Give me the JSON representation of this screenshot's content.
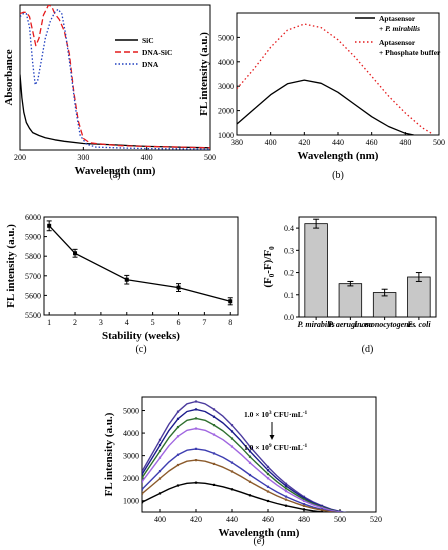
{
  "chart_data": [
    {
      "id": "a",
      "type": "line",
      "caption": "(a)",
      "xlabel": "Wavelength (nm)",
      "ylabel": "Absorbance",
      "xlim": [
        200,
        500
      ],
      "ylim": [
        0,
        1
      ],
      "xticks": [
        200,
        300,
        400,
        500
      ],
      "yticks": [],
      "legend": "top-right",
      "series": [
        {
          "name": "SiC",
          "color": "#000000",
          "dash": "",
          "x": [
            200,
            203,
            206,
            210,
            215,
            220,
            230,
            240,
            255,
            270,
            300,
            350,
            400,
            450,
            500
          ],
          "y": [
            0.52,
            0.36,
            0.26,
            0.19,
            0.15,
            0.12,
            0.1,
            0.085,
            0.07,
            0.06,
            0.045,
            0.035,
            0.025,
            0.02,
            0.015
          ]
        },
        {
          "name": "DNA-SiC",
          "color": "#e41a1c",
          "dash": "6,3",
          "x": [
            200,
            205,
            210,
            215,
            220,
            225,
            230,
            237,
            245,
            250,
            255,
            262,
            270,
            278,
            285,
            292,
            300,
            310,
            330,
            360,
            400,
            450,
            500
          ],
          "y": [
            0.94,
            0.95,
            0.95,
            0.92,
            0.82,
            0.72,
            0.77,
            0.93,
            1.0,
            0.99,
            0.94,
            0.9,
            0.82,
            0.66,
            0.4,
            0.2,
            0.08,
            0.05,
            0.04,
            0.03,
            0.025,
            0.02,
            0.015
          ]
        },
        {
          "name": "DNA",
          "color": "#1f3fbf",
          "dash": "1.5,2",
          "x": [
            200,
            205,
            210,
            215,
            220,
            224,
            228,
            233,
            240,
            248,
            255,
            260,
            266,
            272,
            280,
            288,
            295,
            305,
            320,
            350,
            400,
            450,
            500
          ],
          "y": [
            0.92,
            0.94,
            0.94,
            0.85,
            0.6,
            0.45,
            0.48,
            0.6,
            0.77,
            0.89,
            0.95,
            0.97,
            0.94,
            0.8,
            0.55,
            0.28,
            0.1,
            0.04,
            0.02,
            0.015,
            0.01,
            0.008,
            0.005
          ]
        }
      ]
    },
    {
      "id": "b",
      "type": "line",
      "caption": "(b)",
      "xlabel": "Wavelength (nm)",
      "ylabel": "FL intensity (a.u.)",
      "xlim": [
        380,
        500
      ],
      "ylim": [
        1000,
        6000
      ],
      "xticks": [
        380,
        400,
        420,
        440,
        460,
        480,
        500
      ],
      "yticks": [
        1000,
        2000,
        3000,
        4000,
        5000
      ],
      "legend": "top-right",
      "legend_entries": [
        {
          "line1": "Aptasensor",
          "line2_prefix": "+ ",
          "line2_italic": "P. mirabilis",
          "color": "#000000",
          "dash": ""
        },
        {
          "line1": "Aptasensor",
          "line2_prefix": "+ ",
          "line2_italic": "",
          "line2_rest": "Phosphate buffer",
          "color": "#e41a1c",
          "dash": "1.5,2.5"
        }
      ],
      "series": [
        {
          "name": "Aptasensor + P. mirabilis",
          "color": "#000000",
          "dash": "",
          "x": [
            380,
            390,
            400,
            410,
            420,
            430,
            440,
            450,
            460,
            470,
            480,
            485
          ],
          "y": [
            1450,
            2050,
            2650,
            3100,
            3250,
            3120,
            2750,
            2250,
            1750,
            1350,
            1070,
            1000
          ]
        },
        {
          "name": "Aptasensor + Phosphate buffer",
          "color": "#e41a1c",
          "dash": "1.5,2.5",
          "x": [
            380,
            390,
            400,
            410,
            420,
            430,
            440,
            450,
            460,
            470,
            480,
            490,
            496
          ],
          "y": [
            2900,
            3700,
            4600,
            5300,
            5550,
            5400,
            4900,
            4200,
            3400,
            2600,
            1900,
            1300,
            1050
          ]
        }
      ]
    },
    {
      "id": "c",
      "type": "line",
      "caption": "(c)",
      "xlabel": "Stability (weeks)",
      "ylabel": "FL intensity (a.u.)",
      "xlim": [
        0.8,
        8.3
      ],
      "ylim": [
        5500,
        6000
      ],
      "xticks": [
        1,
        2,
        3,
        4,
        5,
        6,
        7,
        8
      ],
      "yticks": [
        5500,
        5600,
        5700,
        5800,
        5900,
        6000
      ],
      "series": [
        {
          "name": "",
          "color": "#000000",
          "dash": "",
          "x": [
            1,
            2,
            4,
            6,
            8
          ],
          "y": [
            5955,
            5815,
            5680,
            5640,
            5570
          ],
          "err": [
            25,
            20,
            22,
            20,
            18
          ]
        }
      ]
    },
    {
      "id": "d",
      "type": "bar",
      "caption": "(d)",
      "ylabel_text": "(F0-F)/F0",
      "ylim": [
        0,
        0.45
      ],
      "yticks": [
        0.0,
        0.1,
        0.2,
        0.3,
        0.4
      ],
      "categories": [
        "P. mirabilis",
        "P. aeruginosa",
        "L . monocytogenes",
        "E . coli"
      ],
      "values": [
        0.42,
        0.15,
        0.11,
        0.18
      ],
      "err": [
        0.02,
        0.01,
        0.015,
        0.02
      ],
      "bar_color": "#c8c8c8"
    },
    {
      "id": "e",
      "type": "line",
      "caption": "(e)",
      "xlabel": "Wavelength (nm)",
      "ylabel": "FL intensity (a.u.)",
      "xlim": [
        390,
        520
      ],
      "ylim": [
        500,
        5600
      ],
      "xticks": [
        400,
        420,
        440,
        460,
        480,
        500,
        520
      ],
      "yticks": [
        1000,
        2000,
        3000,
        4000,
        5000
      ],
      "annotation_top": "1.0 × 10",
      "annotation_top_exp": "3",
      "annotation_bottom": "1.0 × 10",
      "annotation_bottom_exp": "9",
      "annotation_unit": " CFU·mL",
      "annotation_unit_exp": "-1",
      "series": [
        {
          "name": "",
          "color": "#4b3b9e",
          "peak": 5400
        },
        {
          "name": "",
          "color": "#1c1c8c",
          "peak": 5050
        },
        {
          "name": "",
          "color": "#2e6f2e",
          "peak": 4650
        },
        {
          "name": "",
          "color": "#a066e0",
          "peak": 4200
        },
        {
          "name": "",
          "color": "#3d3db0",
          "peak": 3300
        },
        {
          "name": "",
          "color": "#8b5a2b",
          "peak": 2800
        },
        {
          "name": "",
          "color": "#000000",
          "peak": 1800
        }
      ],
      "series_base": [
        1100,
        5
      ],
      "series_x": [
        390,
        395,
        400,
        405,
        410,
        415,
        420,
        425,
        430,
        435,
        440,
        445,
        450,
        455,
        460,
        465,
        470,
        475,
        480,
        485,
        490,
        495,
        500,
        505,
        510
      ],
      "series_shape": [
        0.38,
        0.52,
        0.66,
        0.8,
        0.91,
        0.98,
        1.0,
        0.98,
        0.93,
        0.87,
        0.79,
        0.7,
        0.6,
        0.51,
        0.42,
        0.34,
        0.27,
        0.21,
        0.155,
        0.11,
        0.075,
        0.045,
        0.025,
        0.01,
        0.0
      ]
    }
  ]
}
